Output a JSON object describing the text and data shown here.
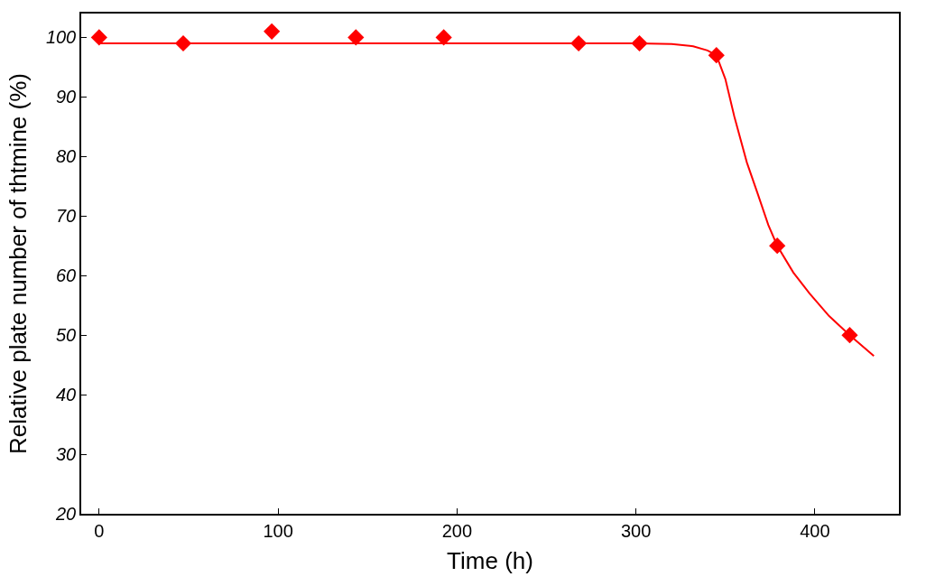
{
  "chart_data": {
    "type": "scatter",
    "xlabel": "Time (h)",
    "ylabel": "Relative plate number of thtmine (%)",
    "xlim": [
      -10,
      447
    ],
    "ylim": [
      20,
      104
    ],
    "xticks": [
      0,
      100,
      200,
      300,
      400
    ],
    "yticks": [
      20,
      30,
      40,
      50,
      60,
      70,
      80,
      90,
      100
    ],
    "grid": false,
    "marker": "diamond",
    "series": [
      {
        "type": "line",
        "marker": "none",
        "color": "#ff0000",
        "x": [
          0,
          100,
          200,
          300,
          320,
          332,
          340,
          345,
          350,
          355,
          362,
          368,
          374,
          379,
          388,
          397,
          408,
          419.5,
          433
        ],
        "values": [
          99,
          99,
          99,
          99,
          98.9,
          98.5,
          97.8,
          97,
          93,
          86.7,
          79,
          73.8,
          68.5,
          65,
          60.5,
          57,
          53.2,
          50,
          46.5
        ]
      },
      {
        "color": "#ff0000",
        "x": [
          0,
          47,
          96.5,
          143.5,
          192.6,
          268,
          302,
          345,
          379,
          419.5
        ],
        "values": [
          100,
          99,
          101,
          100,
          100,
          99,
          99,
          97,
          65,
          50
        ]
      }
    ]
  }
}
